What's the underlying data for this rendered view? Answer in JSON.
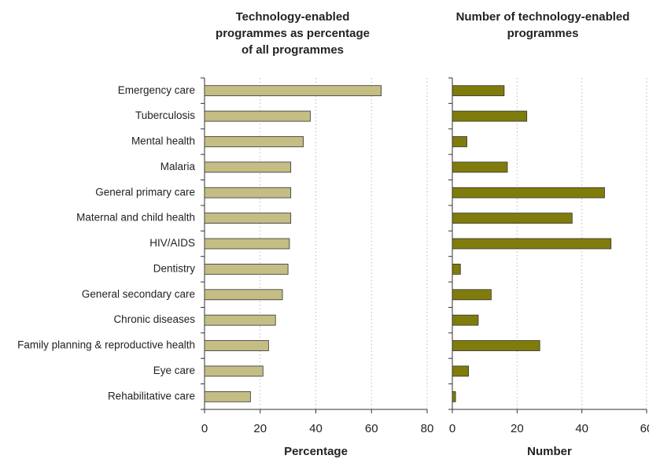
{
  "chart_data": [
    {
      "type": "bar",
      "orientation": "horizontal",
      "title": [
        "Technology-enabled",
        "programmes as percentage",
        "of all programmes"
      ],
      "xlabel": "Percentage",
      "categories": [
        "Emergency care",
        "Tuberculosis",
        "Mental health",
        "Malaria",
        "General primary care",
        "Maternal and child health",
        "HIV/AIDS",
        "Dentistry",
        "General secondary care",
        "Chronic diseases",
        "Family planning & reproductive health",
        "Eye care",
        "Rehabilitative care"
      ],
      "values": [
        63.5,
        38,
        35.5,
        31,
        31,
        31,
        30.5,
        30,
        28,
        25.5,
        23,
        21,
        16.5
      ],
      "color": "#c4bd84",
      "xlim": [
        0,
        80
      ],
      "xticks": [
        0,
        20,
        40,
        60,
        80
      ],
      "grid": true
    },
    {
      "type": "bar",
      "orientation": "horizontal",
      "title": [
        "Number of technology-enabled",
        "programmes"
      ],
      "xlabel": "Number",
      "values": [
        16,
        23,
        4.5,
        17,
        47,
        37,
        49,
        2.5,
        12,
        8,
        27,
        5,
        1
      ],
      "color": "#7f7c0c",
      "xlim": [
        0,
        60
      ],
      "xticks": [
        0,
        20,
        40,
        60
      ],
      "grid": true
    }
  ]
}
